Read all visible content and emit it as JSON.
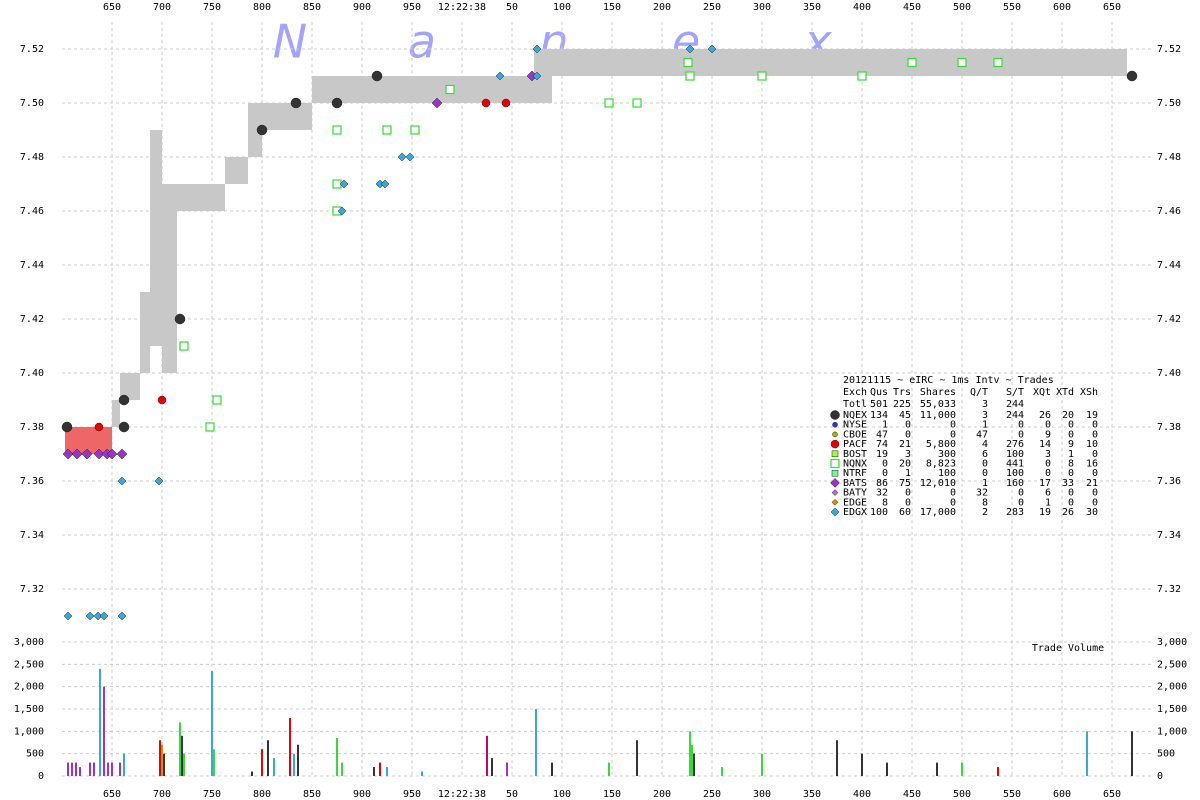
{
  "chart_data": {
    "type": "scatter",
    "watermark": [
      "N",
      "a",
      "n",
      "e",
      "x"
    ],
    "xlim": [
      600,
      1690
    ],
    "xticks": [
      650,
      700,
      750,
      800,
      850,
      900,
      950,
      {
        "value": 1000,
        "label": "12:22:38"
      },
      {
        "value": 1050,
        "label": "50"
      },
      {
        "value": 1100,
        "label": "100"
      },
      {
        "value": 1150,
        "label": "150"
      },
      {
        "value": 1200,
        "label": "200"
      },
      {
        "value": 1250,
        "label": "250"
      },
      {
        "value": 1300,
        "label": "300"
      },
      {
        "value": 1350,
        "label": "350"
      },
      {
        "value": 1400,
        "label": "400"
      },
      {
        "value": 1450,
        "label": "450"
      },
      {
        "value": 1500,
        "label": "500"
      },
      {
        "value": 1550,
        "label": "550"
      },
      {
        "value": 1600,
        "label": "600"
      },
      {
        "value": 1650,
        "label": "650"
      }
    ],
    "ylim": [
      7.305,
      7.53
    ],
    "yticks": [
      7.32,
      7.34,
      7.36,
      7.38,
      {
        "value": 7.4,
        "label": "7.40"
      },
      7.42,
      7.44,
      7.46,
      7.48,
      {
        "value": 7.5,
        "label": "7.50"
      },
      7.52
    ],
    "grid": true,
    "spread": {
      "color": "#c8c8c8",
      "x0": [
        650,
        658,
        678,
        688,
        700,
        715,
        763,
        786,
        800,
        850,
        1072,
        1090
      ],
      "x1": [
        658,
        678,
        688,
        700,
        715,
        763,
        786,
        800,
        850,
        1072,
        1090,
        1665
      ],
      "bid": [
        7.38,
        7.39,
        7.4,
        7.41,
        7.4,
        7.46,
        7.47,
        7.48,
        7.49,
        7.5,
        7.5,
        7.51
      ],
      "ask": [
        7.39,
        7.4,
        7.43,
        7.49,
        7.47,
        7.47,
        7.48,
        7.5,
        7.5,
        7.51,
        7.52,
        7.52
      ]
    },
    "crossed": {
      "color": "#ee6666",
      "x0": [
        603
      ],
      "x1": [
        650
      ],
      "bid": [
        7.37
      ],
      "ask": [
        7.38
      ]
    },
    "legend_title": "20121115 ~ eIRC ~ 1ms Intv ~ Trades",
    "legend_header": [
      "Exch",
      "Qus",
      "Trs",
      "Shares",
      "Q/T",
      "S/T",
      "XQt",
      "XTd",
      "XSh"
    ],
    "legend_total": [
      "Totl",
      "501",
      "225",
      "55,033",
      "3",
      "244"
    ],
    "legend_rows": [
      {
        "cells": [
          "NQEX",
          "134",
          "45",
          "11,000",
          "3",
          "244",
          "26",
          "20",
          "19"
        ],
        "color": "#333333",
        "marker": "circle",
        "size": 5,
        "x": [
          605,
          662,
          662,
          718,
          800,
          834,
          875,
          915,
          1670
        ],
        "y": [
          7.38,
          7.38,
          7.39,
          7.42,
          7.49,
          7.5,
          7.5,
          7.51,
          7.51
        ]
      },
      {
        "cells": [
          "NYSE",
          "1",
          "0",
          "0",
          "1",
          "0",
          "0",
          "0",
          "0"
        ],
        "color": "#3333cc",
        "marker": "circle",
        "size": 2.5,
        "x": [],
        "y": []
      },
      {
        "cells": [
          "CBOE",
          "47",
          "0",
          "0",
          "47",
          "0",
          "9",
          "0",
          "0"
        ],
        "color": "#99bb00",
        "marker": "circle",
        "size": 2.5,
        "x": [],
        "y": []
      },
      {
        "cells": [
          "PACF",
          "74",
          "21",
          "5,800",
          "4",
          "276",
          "14",
          "9",
          "10"
        ],
        "color": "#ee0000",
        "marker": "circle",
        "size": 4,
        "x": [
          637,
          700,
          1024,
          1044
        ],
        "y": [
          7.38,
          7.39,
          7.5,
          7.5
        ]
      },
      {
        "cells": [
          "BOST",
          "19",
          "3",
          "300",
          "6",
          "100",
          "3",
          "1",
          "0"
        ],
        "color": "#99ff33",
        "marker": "square",
        "size": 3,
        "x": [],
        "y": []
      },
      {
        "cells": [
          "NQNX",
          "0",
          "20",
          "8,823",
          "0",
          "441",
          "0",
          "8",
          "16"
        ],
        "color": "#33dd33",
        "marker": "square",
        "size": 4,
        "hollow": true,
        "x": [
          722,
          748,
          755,
          875,
          875,
          875,
          925,
          953,
          988,
          1147,
          1175,
          1226,
          1228,
          1300,
          1400,
          1450,
          1500,
          1536
        ],
        "y": [
          7.41,
          7.38,
          7.39,
          7.47,
          7.46,
          7.49,
          7.49,
          7.49,
          7.505,
          7.5,
          7.5,
          7.515,
          7.51,
          7.51,
          7.51,
          7.515,
          7.515,
          7.515
        ]
      },
      {
        "cells": [
          "NTRF",
          "0",
          "1",
          "100",
          "0",
          "100",
          "0",
          "0",
          "0"
        ],
        "color": "#66ff99",
        "marker": "square",
        "size": 3,
        "x": [],
        "y": []
      },
      {
        "cells": [
          "BATS",
          "86",
          "75",
          "12,010",
          "1",
          "160",
          "17",
          "33",
          "21"
        ],
        "color": "#9933cc",
        "marker": "diamond",
        "size": 5,
        "x": [
          606,
          615,
          625,
          637,
          645,
          650,
          660,
          975,
          1070
        ],
        "y": [
          7.37,
          7.37,
          7.37,
          7.37,
          7.37,
          7.37,
          7.37,
          7.5,
          7.51
        ]
      },
      {
        "cells": [
          "BATY",
          "32",
          "0",
          "0",
          "32",
          "0",
          "6",
          "0",
          "0"
        ],
        "color": "#cc66cc",
        "marker": "diamond",
        "size": 3,
        "x": [],
        "y": []
      },
      {
        "cells": [
          "EDGE",
          "8",
          "0",
          "0",
          "8",
          "0",
          "1",
          "0",
          "0"
        ],
        "color": "#cc9900",
        "marker": "diamond",
        "size": 3,
        "x": [],
        "y": []
      },
      {
        "cells": [
          "EDGX",
          "100",
          "60",
          "17,000",
          "2",
          "283",
          "19",
          "26",
          "30"
        ],
        "color": "#33aadd",
        "marker": "diamond",
        "size": 4,
        "x": [
          606,
          628,
          636,
          642,
          660,
          660,
          697,
          880,
          882,
          918,
          923,
          940,
          948,
          1038,
          1075,
          1075,
          1228,
          1250
        ],
        "y": [
          7.31,
          7.31,
          7.31,
          7.31,
          7.31,
          7.36,
          7.36,
          7.46,
          7.47,
          7.47,
          7.47,
          7.48,
          7.48,
          7.51,
          7.52,
          7.51,
          7.52,
          7.52
        ]
      }
    ],
    "volume_label": "Trade Volume",
    "vlim": [
      0,
      3000
    ],
    "vticks": [
      0,
      500,
      {
        "value": 1000,
        "label": "1,000"
      },
      {
        "value": 1500,
        "label": "1,500"
      },
      {
        "value": 2000,
        "label": "2,000"
      },
      {
        "value": 2500,
        "label": "2,500"
      },
      {
        "value": 3000,
        "label": "3,000"
      }
    ],
    "volume": {
      "x": [
        606,
        610,
        614,
        618,
        628,
        632,
        638,
        642,
        646,
        650,
        658,
        662,
        698,
        700,
        702,
        718,
        720,
        722,
        750,
        752,
        790,
        800,
        806,
        812,
        828,
        832,
        836,
        875,
        880,
        912,
        918,
        925,
        960,
        1025,
        1030,
        1045,
        1074,
        1090,
        1147,
        1175,
        1228,
        1230,
        1232,
        1260,
        1300,
        1375,
        1400,
        1425,
        1475,
        1500,
        1536,
        1625,
        1670
      ],
      "values": [
        300,
        300,
        300,
        200,
        300,
        300,
        2400,
        2000,
        300,
        300,
        300,
        500,
        800,
        700,
        500,
        1200,
        900,
        500,
        2350,
        600,
        100,
        600,
        800,
        400,
        1300,
        500,
        700,
        850,
        300,
        200,
        300,
        200,
        100,
        900,
        400,
        300,
        1500,
        300,
        300,
        800,
        1000,
        700,
        500,
        200,
        500,
        800,
        500,
        300,
        300,
        300,
        200,
        1000,
        1000
      ],
      "colors": [
        "#9933cc",
        "#9933cc",
        "#9933cc",
        "#9933cc",
        "#9933cc",
        "#9933cc",
        "#33aadd",
        "#9933cc",
        "#9933cc",
        "#9933cc",
        "#9933cc",
        "#33aadd",
        "#ee0000",
        "#cc9900",
        "#333333",
        "#33dd33",
        "#333333",
        "#33dd33",
        "#33aadd",
        "#33dd33",
        "#333333",
        "#ee0000",
        "#333333",
        "#33aadd",
        "#ee0000",
        "#33aadd",
        "#333333",
        "#33dd33",
        "#33dd33",
        "#333333",
        "#ee0000",
        "#33aadd",
        "#33aadd",
        "#cc0066",
        "#333333",
        "#9933cc",
        "#33aadd",
        "#333333",
        "#33dd33",
        "#333333",
        "#33dd33",
        "#33dd33",
        "#333333",
        "#33dd33",
        "#33dd33",
        "#333333",
        "#333333",
        "#333333",
        "#333333",
        "#33dd33",
        "#ee0000",
        "#33aadd",
        "#333333"
      ]
    }
  }
}
